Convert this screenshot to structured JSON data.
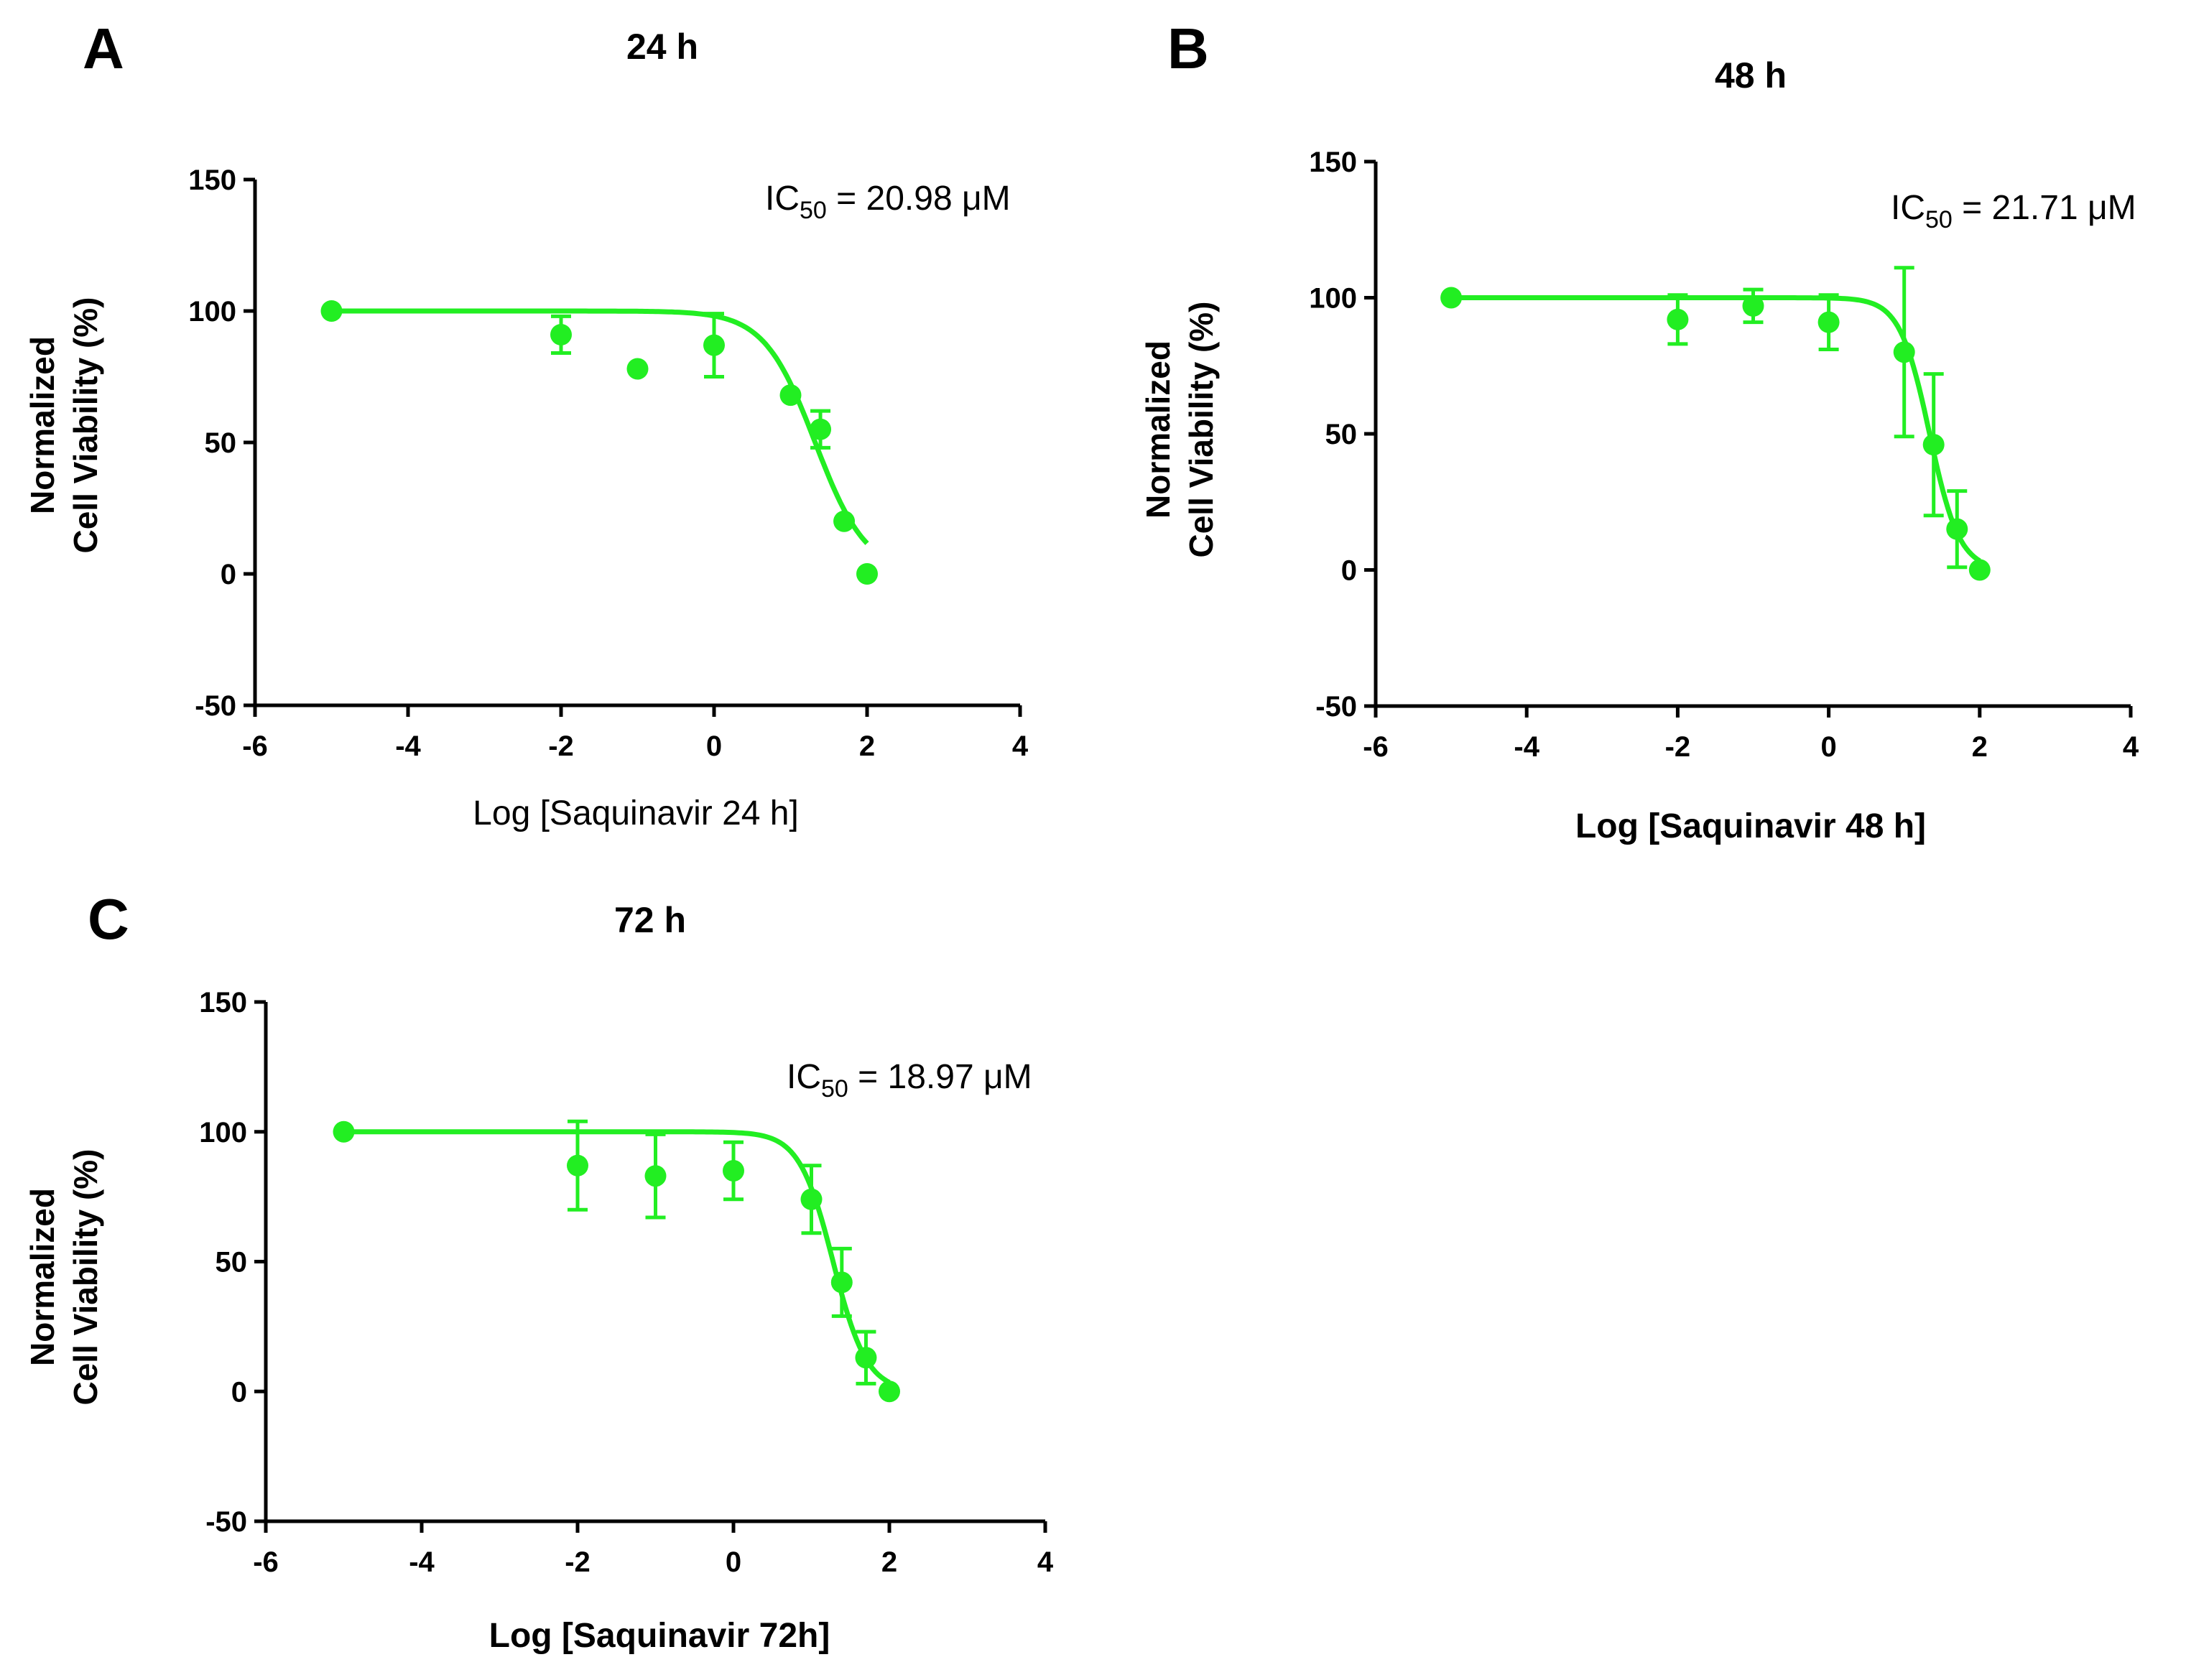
{
  "chart_data": [
    {
      "type": "scatter",
      "panel": "A",
      "title": "24 h",
      "xlabel": "Log [Saquinavir 24 h]",
      "ylabel_line1": "Normalized",
      "ylabel_line2": "Cell Viability (%)",
      "xlim": [
        -6,
        4
      ],
      "ylim": [
        -50,
        150
      ],
      "xticks": [
        -6,
        -4,
        -2,
        0,
        2,
        4
      ],
      "yticks": [
        -50,
        0,
        50,
        100,
        150
      ],
      "annotation_prefix": "IC",
      "annotation_sub": "50",
      "annotation_value": " = 20.98 μM",
      "ic50_uM": 20.98,
      "color": "#22ee22",
      "points": [
        {
          "x": -5,
          "y": 100,
          "err": 0
        },
        {
          "x": -2,
          "y": 91,
          "err": 7
        },
        {
          "x": -1,
          "y": 78,
          "err": 0
        },
        {
          "x": 0,
          "y": 87,
          "err": 12
        },
        {
          "x": 1,
          "y": 68,
          "err": 0
        },
        {
          "x": 1.39,
          "y": 55,
          "err": 7
        },
        {
          "x": 1.7,
          "y": 20,
          "err": 0
        },
        {
          "x": 2,
          "y": 0,
          "err": 0
        }
      ],
      "fit_hill": 1.3,
      "fit_xrange": [
        -5,
        2
      ]
    },
    {
      "type": "scatter",
      "panel": "B",
      "title": "48 h",
      "xlabel": "Log [Saquinavir 48 h]",
      "ylabel_line1": "Normalized",
      "ylabel_line2": "Cell Viability (%)",
      "xlim": [
        -6,
        4
      ],
      "ylim": [
        -50,
        150
      ],
      "xticks": [
        -6,
        -4,
        -2,
        0,
        2,
        4
      ],
      "yticks": [
        -50,
        0,
        50,
        100,
        150
      ],
      "annotation_prefix": "IC",
      "annotation_sub": "50",
      "annotation_value": " = 21.71 μM",
      "ic50_uM": 21.71,
      "color": "#22ee22",
      "points": [
        {
          "x": -5,
          "y": 100,
          "err": 0
        },
        {
          "x": -2,
          "y": 92,
          "err": 9
        },
        {
          "x": -1,
          "y": 97,
          "err": 6
        },
        {
          "x": 0,
          "y": 91,
          "err": 10
        },
        {
          "x": 1,
          "y": 80,
          "err": 31
        },
        {
          "x": 1.39,
          "y": 46,
          "err": 26
        },
        {
          "x": 1.7,
          "y": 15,
          "err": 14
        },
        {
          "x": 2,
          "y": 0,
          "err": 0
        }
      ],
      "fit_hill": 2.2,
      "fit_xrange": [
        -5,
        2
      ]
    },
    {
      "type": "scatter",
      "panel": "C",
      "title": "72 h",
      "xlabel": "Log [Saquinavir 72h]",
      "ylabel_line1": "Normalized",
      "ylabel_line2": "Cell Viability (%)",
      "xlim": [
        -6,
        4
      ],
      "ylim": [
        -50,
        150
      ],
      "xticks": [
        -6,
        -4,
        -2,
        0,
        2,
        4
      ],
      "yticks": [
        -50,
        0,
        50,
        100,
        150
      ],
      "annotation_prefix": "IC",
      "annotation_sub": "50",
      "annotation_value": " = 18.97 μM",
      "ic50_uM": 18.97,
      "color": "#22ee22",
      "points": [
        {
          "x": -5,
          "y": 100,
          "err": 0
        },
        {
          "x": -2,
          "y": 87,
          "err": 17
        },
        {
          "x": -1,
          "y": 83,
          "err": 16
        },
        {
          "x": 0,
          "y": 85,
          "err": 11
        },
        {
          "x": 1,
          "y": 74,
          "err": 13
        },
        {
          "x": 1.39,
          "y": 42,
          "err": 13
        },
        {
          "x": 1.7,
          "y": 13,
          "err": 10
        },
        {
          "x": 2,
          "y": 0,
          "err": 0
        }
      ],
      "fit_hill": 2.0,
      "fit_xrange": [
        -5,
        2
      ]
    }
  ]
}
